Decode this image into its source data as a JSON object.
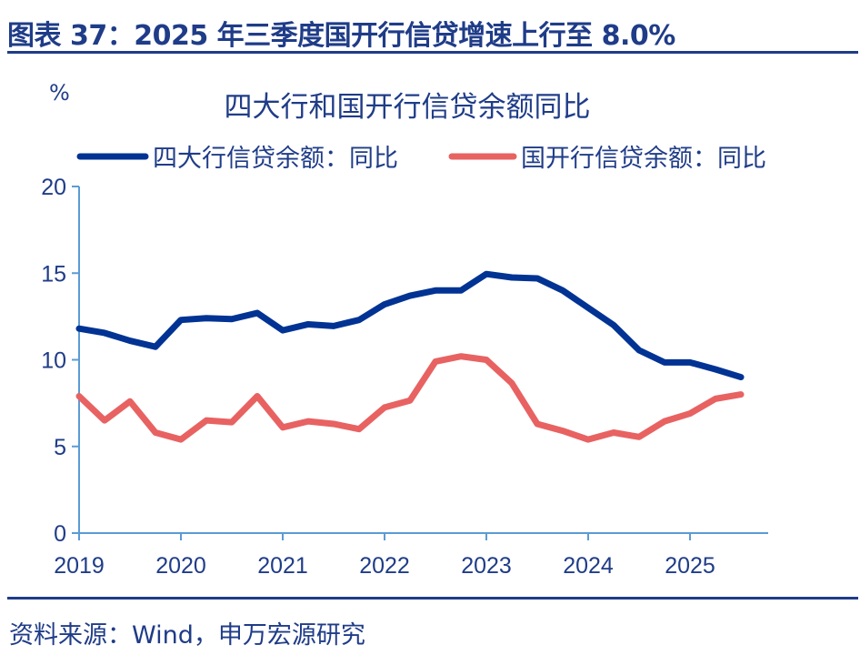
{
  "figure_title": "图表 37：2025 年三季度国开行信贷增速上行至 8.0%",
  "source": "资料来源：Wind，申万宏源研究",
  "chart_data": {
    "type": "line",
    "title": "四大行和国开行信贷余额同比",
    "ylabel": "%",
    "ylim": [
      0,
      20
    ],
    "yticks": [
      "0",
      "5",
      "10",
      "15",
      "20"
    ],
    "xticks": [
      "2019",
      "2020",
      "2021",
      "2022",
      "2023",
      "2024",
      "2025"
    ],
    "x": [
      "2019Q1",
      "2019Q2",
      "2019Q3",
      "2019Q4",
      "2020Q1",
      "2020Q2",
      "2020Q3",
      "2020Q4",
      "2021Q1",
      "2021Q2",
      "2021Q3",
      "2021Q4",
      "2022Q1",
      "2022Q2",
      "2022Q3",
      "2022Q4",
      "2023Q1",
      "2023Q2",
      "2023Q3",
      "2023Q4",
      "2024Q1",
      "2024Q2",
      "2024Q3",
      "2024Q4",
      "2025Q1",
      "2025Q2",
      "2025Q3"
    ],
    "legend_position": "top",
    "grid": false,
    "series": [
      {
        "name": "四大行信贷余额：同比",
        "color": "#003393",
        "values": [
          11.8,
          11.55,
          11.1,
          10.75,
          12.3,
          12.4,
          12.35,
          12.7,
          11.7,
          12.05,
          11.95,
          12.3,
          13.2,
          13.7,
          14.0,
          14.0,
          14.95,
          14.75,
          14.7,
          14.0,
          13.0,
          12.0,
          10.55,
          9.85,
          9.85,
          9.45,
          9.0
        ]
      },
      {
        "name": "国开行信贷余额：同比",
        "color": "#E86262",
        "values": [
          7.9,
          6.5,
          7.6,
          5.8,
          5.4,
          6.5,
          6.4,
          7.9,
          6.1,
          6.45,
          6.3,
          6.0,
          7.25,
          7.65,
          9.9,
          10.2,
          10.0,
          8.65,
          6.3,
          5.9,
          5.4,
          5.8,
          5.55,
          6.45,
          6.9,
          7.75,
          8.0
        ]
      }
    ]
  }
}
